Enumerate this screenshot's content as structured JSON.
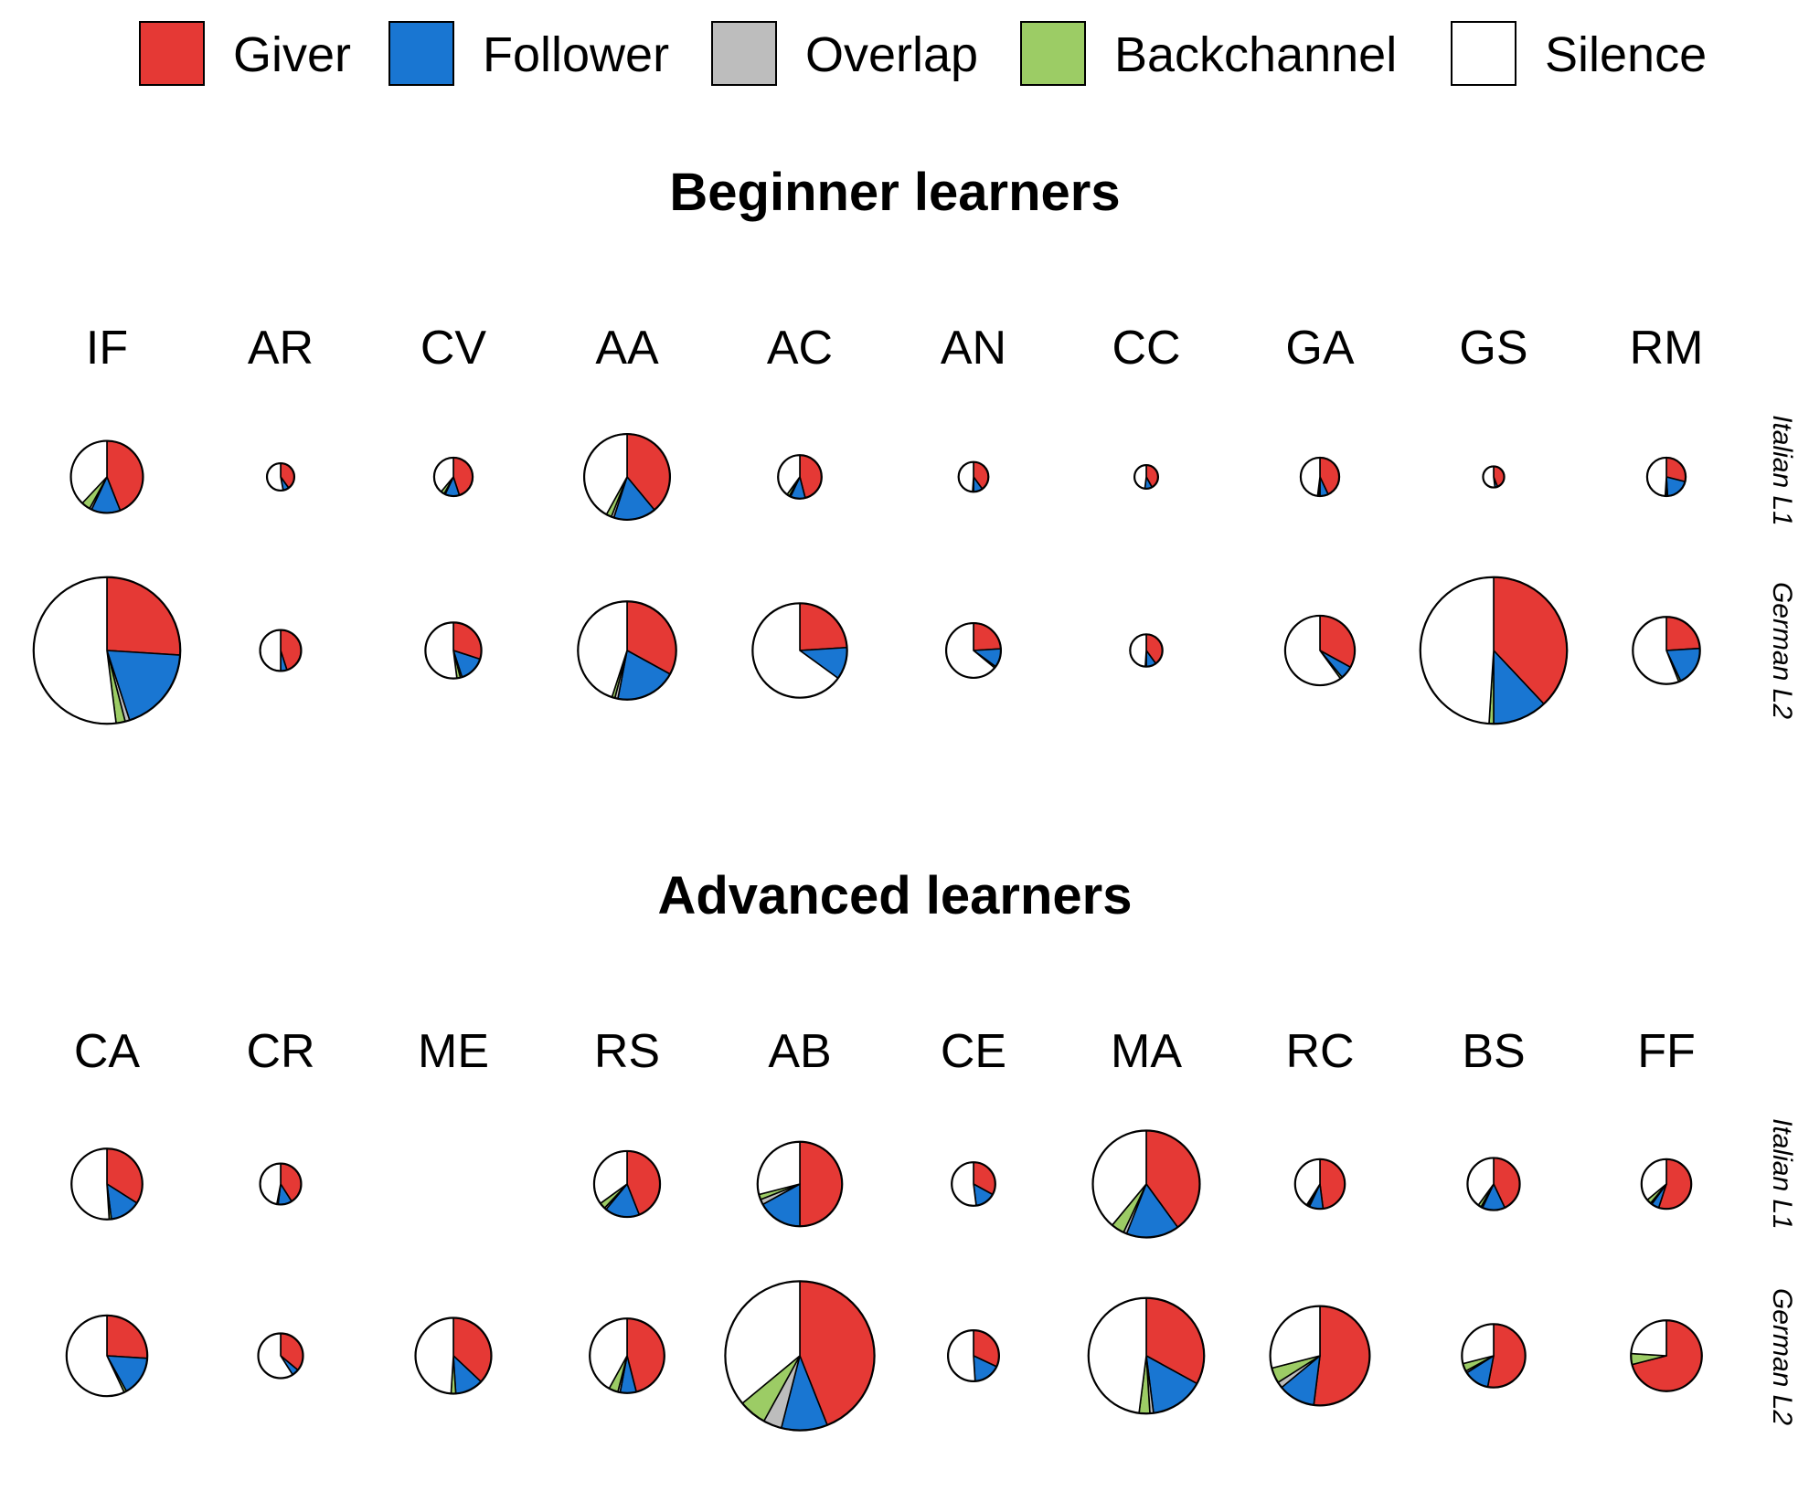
{
  "legend": [
    {
      "label": "Giver",
      "color": "#e53935"
    },
    {
      "label": "Follower",
      "color": "#1976d2"
    },
    {
      "label": "Overlap",
      "color": "#bdbdbd"
    },
    {
      "label": "Backchannel",
      "color": "#9ccc65"
    },
    {
      "label": "Silence",
      "color": "#ffffff"
    }
  ],
  "row_labels": [
    "Italian L1",
    "German L2"
  ],
  "chart_data": [
    {
      "type": "pie",
      "title": "Beginner learners",
      "legend_position": "top",
      "categories": [
        "Giver",
        "Follower",
        "Overlap",
        "Backchannel",
        "Silence"
      ],
      "columns": [
        "IF",
        "AR",
        "CV",
        "AA",
        "AC",
        "AN",
        "CC",
        "GA",
        "GS",
        "RM"
      ],
      "rows": [
        {
          "name": "Italian L1",
          "pies": [
            {
              "size": 0.58,
              "values": [
                0.44,
                0.13,
                0.01,
                0.04,
                0.38
              ]
            },
            {
              "size": 0.22,
              "values": [
                0.4,
                0.07,
                0.0,
                0.0,
                0.53
              ]
            },
            {
              "size": 0.31,
              "values": [
                0.45,
                0.12,
                0.01,
                0.03,
                0.39
              ]
            },
            {
              "size": 0.69,
              "values": [
                0.39,
                0.16,
                0.01,
                0.02,
                0.42
              ]
            },
            {
              "size": 0.35,
              "values": [
                0.46,
                0.11,
                0.01,
                0.02,
                0.4
              ]
            },
            {
              "size": 0.24,
              "values": [
                0.4,
                0.1,
                0.0,
                0.01,
                0.49
              ]
            },
            {
              "size": 0.19,
              "values": [
                0.42,
                0.1,
                0.0,
                0.0,
                0.48
              ]
            },
            {
              "size": 0.31,
              "values": [
                0.43,
                0.07,
                0.01,
                0.01,
                0.48
              ]
            },
            {
              "size": 0.17,
              "values": [
                0.44,
                0.04,
                0.0,
                0.0,
                0.52
              ]
            },
            {
              "size": 0.31,
              "values": [
                0.29,
                0.2,
                0.01,
                0.01,
                0.49
              ]
            }
          ]
        },
        {
          "name": "German L2",
          "pies": [
            {
              "size": 1.18,
              "values": [
                0.26,
                0.19,
                0.01,
                0.02,
                0.52
              ]
            },
            {
              "size": 0.33,
              "values": [
                0.45,
                0.05,
                0.0,
                0.0,
                0.5
              ]
            },
            {
              "size": 0.45,
              "values": [
                0.3,
                0.15,
                0.01,
                0.02,
                0.52
              ]
            },
            {
              "size": 0.79,
              "values": [
                0.33,
                0.2,
                0.01,
                0.01,
                0.45
              ]
            },
            {
              "size": 0.76,
              "values": [
                0.24,
                0.11,
                0.0,
                0.0,
                0.65
              ]
            },
            {
              "size": 0.44,
              "values": [
                0.24,
                0.11,
                0.0,
                0.01,
                0.64
              ]
            },
            {
              "size": 0.26,
              "values": [
                0.4,
                0.1,
                0.0,
                0.01,
                0.49
              ]
            },
            {
              "size": 0.56,
              "values": [
                0.33,
                0.06,
                0.0,
                0.01,
                0.6
              ]
            },
            {
              "size": 1.18,
              "values": [
                0.38,
                0.12,
                0.0,
                0.01,
                0.49
              ]
            },
            {
              "size": 0.54,
              "values": [
                0.24,
                0.19,
                0.0,
                0.01,
                0.56
              ]
            }
          ]
        }
      ]
    },
    {
      "type": "pie",
      "title": "Advanced learners",
      "legend_position": "top",
      "categories": [
        "Giver",
        "Follower",
        "Overlap",
        "Backchannel",
        "Silence"
      ],
      "columns": [
        "CA",
        "CR",
        "ME",
        "RS",
        "AB",
        "CE",
        "MA",
        "RC",
        "BS",
        "FF"
      ],
      "rows": [
        {
          "name": "Italian L1",
          "pies": [
            {
              "size": 0.57,
              "values": [
                0.34,
                0.14,
                0.0,
                0.01,
                0.51
              ]
            },
            {
              "size": 0.33,
              "values": [
                0.41,
                0.11,
                0.0,
                0.01,
                0.47
              ]
            },
            {
              "size": 0,
              "values": [
                0,
                0,
                0,
                0,
                0
              ]
            },
            {
              "size": 0.53,
              "values": [
                0.44,
                0.17,
                0.01,
                0.03,
                0.35
              ]
            },
            {
              "size": 0.68,
              "values": [
                0.5,
                0.17,
                0.02,
                0.02,
                0.29
              ]
            },
            {
              "size": 0.35,
              "values": [
                0.33,
                0.15,
                0.0,
                0.0,
                0.52
              ]
            },
            {
              "size": 0.86,
              "values": [
                0.4,
                0.16,
                0.01,
                0.04,
                0.39
              ]
            },
            {
              "size": 0.4,
              "values": [
                0.48,
                0.09,
                0.01,
                0.01,
                0.41
              ]
            },
            {
              "size": 0.42,
              "values": [
                0.43,
                0.14,
                0.01,
                0.02,
                0.4
              ]
            },
            {
              "size": 0.4,
              "values": [
                0.55,
                0.05,
                0.01,
                0.03,
                0.36
              ]
            }
          ]
        },
        {
          "name": "German L2",
          "pies": [
            {
              "size": 0.65,
              "values": [
                0.26,
                0.16,
                0.0,
                0.01,
                0.57
              ]
            },
            {
              "size": 0.36,
              "values": [
                0.36,
                0.05,
                0.0,
                0.0,
                0.59
              ]
            },
            {
              "size": 0.61,
              "values": [
                0.37,
                0.12,
                0.0,
                0.02,
                0.49
              ]
            },
            {
              "size": 0.6,
              "values": [
                0.46,
                0.07,
                0.01,
                0.04,
                0.42
              ]
            },
            {
              "size": 1.2,
              "values": [
                0.44,
                0.1,
                0.04,
                0.06,
                0.36
              ]
            },
            {
              "size": 0.41,
              "values": [
                0.32,
                0.17,
                0.0,
                0.0,
                0.51
              ]
            },
            {
              "size": 0.93,
              "values": [
                0.33,
                0.15,
                0.01,
                0.03,
                0.48
              ]
            },
            {
              "size": 0.8,
              "values": [
                0.52,
                0.12,
                0.02,
                0.05,
                0.29
              ]
            },
            {
              "size": 0.51,
              "values": [
                0.53,
                0.13,
                0.01,
                0.04,
                0.29
              ]
            },
            {
              "size": 0.57,
              "values": [
                0.71,
                0.0,
                0.0,
                0.05,
                0.24
              ]
            }
          ]
        }
      ]
    }
  ]
}
